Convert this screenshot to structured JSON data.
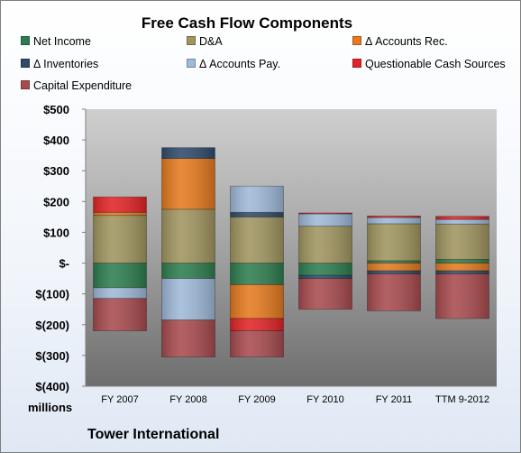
{
  "colors": {
    "net_income": "#2e7d4f",
    "da": "#a09560",
    "accounts_rec": "#e57a1f",
    "inventories": "#2f4a6b",
    "accounts_pay": "#9fb9d8",
    "questionable": "#e22427",
    "capex": "#a84b4e"
  },
  "footer": {
    "units": "millions",
    "company": "Tower International"
  },
  "chart_data": {
    "type": "bar",
    "stacked": true,
    "title": "Free Cash Flow Components",
    "categories": [
      "FY 2007",
      "FY 2008",
      "FY 2009",
      "FY 2010",
      "FY 2011",
      "TTM 9-2012"
    ],
    "series": [
      {
        "name": "Net Income",
        "color": "#2e7d4f",
        "values": [
          -80,
          -50,
          -70,
          -40,
          8,
          12
        ]
      },
      {
        "name": "D&A",
        "color": "#a09560",
        "values": [
          155,
          175,
          150,
          120,
          120,
          115
        ]
      },
      {
        "name": "Δ Accounts Rec.",
        "color": "#e57a1f",
        "values": [
          10,
          165,
          -110,
          0,
          -25,
          -25
        ]
      },
      {
        "name": "Δ Inventories",
        "color": "#2f4a6b",
        "values": [
          0,
          35,
          15,
          -10,
          -10,
          -10
        ]
      },
      {
        "name": "Δ Accounts Pay.",
        "color": "#9fb9d8",
        "values": [
          -35,
          -135,
          85,
          40,
          20,
          15
        ]
      },
      {
        "name": "Questionable Cash Sources",
        "color": "#e22427",
        "values": [
          50,
          0,
          -40,
          3,
          5,
          10
        ]
      },
      {
        "name": "Capital Expenditure",
        "color": "#a84b4e",
        "values": [
          -105,
          -120,
          -85,
          -100,
          -120,
          -145
        ]
      }
    ],
    "ylim": [
      -400,
      500
    ],
    "yticks": [
      {
        "value": 500,
        "label": "$500"
      },
      {
        "value": 400,
        "label": "$400"
      },
      {
        "value": 300,
        "label": "$300"
      },
      {
        "value": 200,
        "label": "$200"
      },
      {
        "value": 100,
        "label": "$100"
      },
      {
        "value": 0,
        "label": "$-"
      },
      {
        "value": -100,
        "label": "$(100)"
      },
      {
        "value": -200,
        "label": "$(200)"
      },
      {
        "value": -300,
        "label": "$(300)"
      },
      {
        "value": -400,
        "label": "$(400)"
      }
    ],
    "legend": "top",
    "grid": false
  }
}
